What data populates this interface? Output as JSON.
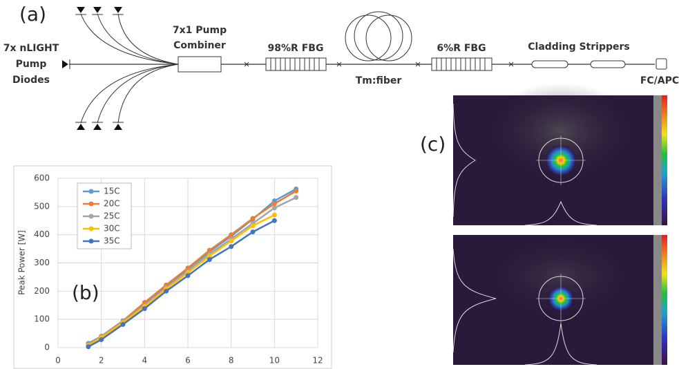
{
  "diagram": {
    "panel_label": "(a)",
    "pump_diodes": [
      "7x nLIGHT",
      "Pump",
      "Diodes"
    ],
    "combiner": [
      "7x1 Pump",
      "Combiner"
    ],
    "fbg_high": "98%R FBG",
    "gain_fiber": "Tm:fiber",
    "fbg_low": "6%R FBG",
    "strippers": "Cladding Strippers",
    "connector": "FC/APC"
  },
  "chart_data": {
    "type": "line",
    "panel_label": "(b)",
    "y_label": "Peak Power [W]",
    "x": [
      1.4,
      2,
      3,
      4,
      5,
      6,
      7,
      8,
      9,
      10,
      11
    ],
    "series": [
      {
        "name": "15C",
        "color": "#5b9bd5",
        "values": [
          15,
          40,
          95,
          155,
          218,
          278,
          340,
          395,
          455,
          520,
          562
        ]
      },
      {
        "name": "20C",
        "color": "#ed7d31",
        "values": [
          12,
          40,
          95,
          160,
          222,
          282,
          345,
          400,
          458,
          510,
          555
        ]
      },
      {
        "name": "25C",
        "color": "#a5a5a5",
        "values": [
          10,
          38,
          92,
          150,
          212,
          270,
          332,
          385,
          440,
          495,
          532
        ]
      },
      {
        "name": "30C",
        "color": "#ffc000",
        "values": [
          8,
          35,
          88,
          145,
          208,
          265,
          325,
          378,
          432,
          470,
          null
        ]
      },
      {
        "name": "35C",
        "color": "#4472c4",
        "values": [
          3,
          28,
          82,
          138,
          200,
          255,
          312,
          358,
          410,
          450,
          null
        ]
      }
    ],
    "xlim": [
      0,
      12
    ],
    "xticks": [
      0,
      2,
      4,
      6,
      8,
      10,
      12
    ],
    "ylim": [
      0,
      600
    ],
    "yticks": [
      0,
      100,
      200,
      300,
      400,
      500,
      600
    ],
    "grid": true
  },
  "images": {
    "panel_label": "(c)"
  }
}
